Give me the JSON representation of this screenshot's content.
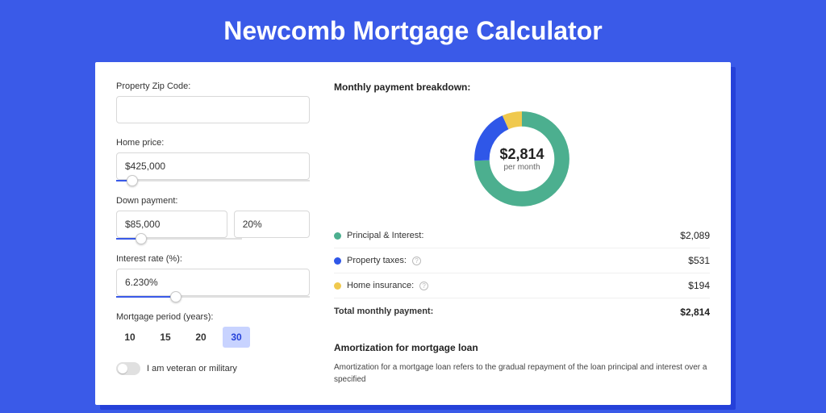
{
  "page": {
    "title": "Newcomb Mortgage Calculator",
    "background_color": "#3a5ae8",
    "shadow_color": "#2541d9",
    "card_bg": "#ffffff"
  },
  "form": {
    "zip": {
      "label": "Property Zip Code:",
      "value": ""
    },
    "home_price": {
      "label": "Home price:",
      "value": "$425,000",
      "slider_pct": 8.5
    },
    "down_payment": {
      "label": "Down payment:",
      "amount": "$85,000",
      "percent": "20%",
      "slider_pct": 20
    },
    "interest_rate": {
      "label": "Interest rate (%):",
      "value": "6.230%",
      "slider_pct": 31
    },
    "mortgage_period": {
      "label": "Mortgage period (years):"
    },
    "period_options": [
      "10",
      "15",
      "20",
      "30"
    ],
    "period_selected": "30",
    "veteran": {
      "label": "I am veteran or military",
      "checked": false
    }
  },
  "breakdown": {
    "title": "Monthly payment breakdown:",
    "chart": {
      "type": "donut",
      "total_value": "$2,814",
      "total_sub": "per month",
      "thickness": 18,
      "radius": 50,
      "background_color": "#ffffff",
      "slices": [
        {
          "key": "principal_interest",
          "value": 2089,
          "pct": 74.24,
          "color": "#4caf8f"
        },
        {
          "key": "property_taxes",
          "value": 531,
          "pct": 18.87,
          "color": "#2f57e8"
        },
        {
          "key": "home_insurance",
          "value": 194,
          "pct": 6.89,
          "color": "#f0c94e"
        }
      ]
    },
    "rows": [
      {
        "dot": "#4caf8f",
        "label": "Principal & Interest:",
        "info": false,
        "value": "$2,089"
      },
      {
        "dot": "#2f57e8",
        "label": "Property taxes:",
        "info": true,
        "value": "$531"
      },
      {
        "dot": "#f0c94e",
        "label": "Home insurance:",
        "info": true,
        "value": "$194"
      }
    ],
    "total": {
      "label": "Total monthly payment:",
      "value": "$2,814"
    }
  },
  "amortization": {
    "title": "Amortization for mortgage loan",
    "text": "Amortization for a mortgage loan refers to the gradual repayment of the loan principal and interest over a specified"
  }
}
